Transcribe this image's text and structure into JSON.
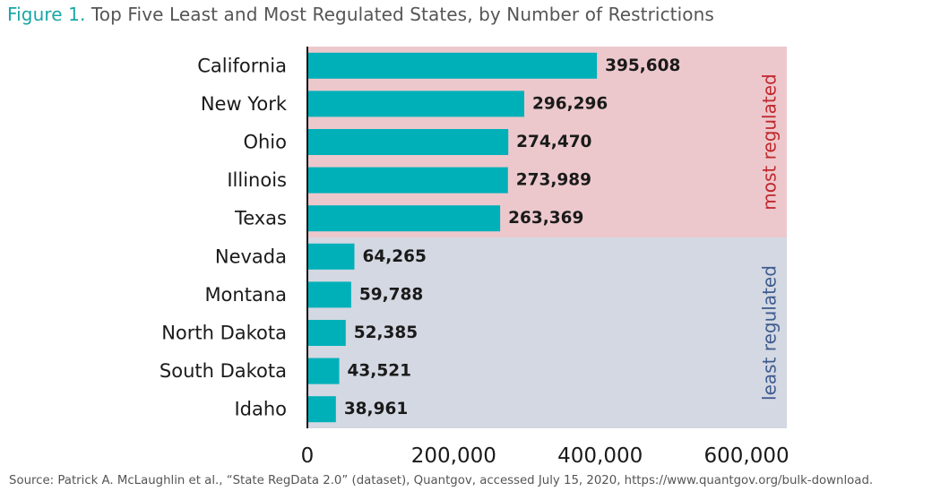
{
  "title": {
    "prefix": "Figure 1.",
    "text": "Top Five Least and Most Regulated States, by Number of Restrictions"
  },
  "source": "Source: Patrick A. McLaughlin et al., “State RegData 2.0” (dataset), Quantgov, accessed July 15, 2020, https://www.quantgov.org/bulk-download.",
  "colors": {
    "bar": "#00b0b9",
    "most_region": "#ecc8cc",
    "least_region": "#d3d8e2",
    "most_label": "#c0272d",
    "least_label": "#3f5b8e",
    "title_accent": "#1aa6a6"
  },
  "chart_data": {
    "type": "bar",
    "orientation": "horizontal",
    "categories": [
      "California",
      "New York",
      "Ohio",
      "Illinois",
      "Texas",
      "Nevada",
      "Montana",
      "North Dakota",
      "South Dakota",
      "Idaho"
    ],
    "values": [
      395608,
      296296,
      274470,
      273989,
      263369,
      64265,
      59788,
      52385,
      43521,
      38961
    ],
    "value_labels": [
      "395,608",
      "296,296",
      "274,470",
      "273,989",
      "263,369",
      "64,265",
      "59,788",
      "52,385",
      "43,521",
      "38,961"
    ],
    "xlim": [
      0,
      655000
    ],
    "xticks": [
      0,
      200000,
      400000,
      600000
    ],
    "xtick_labels": [
      "0",
      "200,000",
      "400,000",
      "600,000"
    ],
    "grid": false,
    "groups": [
      {
        "label": "most regulated",
        "first": 0,
        "last": 4
      },
      {
        "label": "least regulated",
        "first": 5,
        "last": 9
      }
    ]
  }
}
